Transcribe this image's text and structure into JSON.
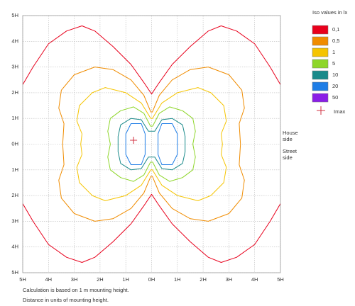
{
  "chart_data": {
    "type": "isolux",
    "xlim": [
      -5,
      5
    ],
    "ylim": [
      -5,
      5
    ],
    "xticks": [
      {
        "value": -5,
        "label": "5H"
      },
      {
        "value": -4,
        "label": "4H"
      },
      {
        "value": -3,
        "label": "3H"
      },
      {
        "value": -2,
        "label": "2H"
      },
      {
        "value": -1,
        "label": "1H"
      },
      {
        "value": 0,
        "label": "0H"
      },
      {
        "value": 1,
        "label": "1H"
      },
      {
        "value": 2,
        "label": "2H"
      },
      {
        "value": 3,
        "label": "3H"
      },
      {
        "value": 4,
        "label": "4H"
      },
      {
        "value": 5,
        "label": "5H"
      }
    ],
    "yticks": [
      {
        "value": -5,
        "label": "5H"
      },
      {
        "value": -4,
        "label": "4H"
      },
      {
        "value": -3,
        "label": "3H"
      },
      {
        "value": -2,
        "label": "2H"
      },
      {
        "value": -1,
        "label": "1H"
      },
      {
        "value": 0,
        "label": "0H"
      },
      {
        "value": 1,
        "label": "1H"
      },
      {
        "value": 2,
        "label": "2H"
      },
      {
        "value": 3,
        "label": "3H"
      },
      {
        "value": 4,
        "label": "4H"
      },
      {
        "value": 5,
        "label": "5H"
      }
    ],
    "grid": true,
    "legend_title": "Iso values in lx",
    "series": [
      {
        "name": "0,1",
        "color": "#e8001c"
      },
      {
        "name": "0,5",
        "color": "#f08c00"
      },
      {
        "name": "1",
        "color": "#f5c400"
      },
      {
        "name": "5",
        "color": "#8ed62a"
      },
      {
        "name": "10",
        "color": "#1a8a8a"
      },
      {
        "name": "20",
        "color": "#1e7de6"
      },
      {
        "name": "50",
        "color": "#8a1ee6"
      }
    ],
    "imax": {
      "label": "Imax",
      "x": -0.7,
      "y": 0.15,
      "color": "#d03040"
    },
    "side_labels": [
      "House\nside",
      "Street\nside"
    ],
    "notes": [
      "Calculation is based on 1 m mounting height.",
      "Distance in units of mounting height."
    ]
  }
}
